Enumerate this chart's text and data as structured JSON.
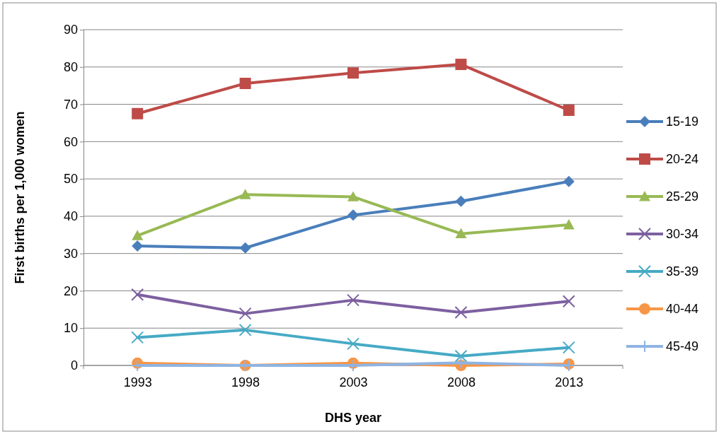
{
  "chart_data": {
    "type": "line",
    "xlabel": "DHS year",
    "ylabel": "First births per 1,000 women",
    "categories": [
      "1993",
      "1998",
      "2003",
      "2008",
      "2013"
    ],
    "ylim": [
      0,
      90
    ],
    "yticks": [
      0,
      10,
      20,
      30,
      40,
      50,
      60,
      70,
      80,
      90
    ],
    "grid": "y",
    "legend": "right",
    "line_style": "solid",
    "series": [
      {
        "name": "15-19",
        "color": "#4a7ebb",
        "marker": "diamond",
        "values": [
          32.0,
          31.5,
          40.3,
          44.0,
          49.3
        ]
      },
      {
        "name": "20-24",
        "color": "#be4b48",
        "marker": "square",
        "values": [
          67.5,
          75.6,
          78.4,
          80.7,
          68.4
        ]
      },
      {
        "name": "25-29",
        "color": "#98b954",
        "marker": "triangle",
        "values": [
          34.8,
          45.8,
          45.2,
          35.3,
          37.7
        ]
      },
      {
        "name": "30-34",
        "color": "#7d60a0",
        "marker": "cross",
        "values": [
          19.0,
          13.9,
          17.5,
          14.2,
          17.2
        ]
      },
      {
        "name": "35-39",
        "color": "#46aac5",
        "marker": "cross",
        "values": [
          7.5,
          9.5,
          5.8,
          2.5,
          4.8
        ]
      },
      {
        "name": "40-44",
        "color": "#f79646",
        "marker": "circle",
        "values": [
          0.6,
          0,
          0.6,
          0,
          0.4
        ]
      },
      {
        "name": "45-49",
        "color": "#8eb4e3",
        "marker": "plus",
        "values": [
          0,
          0,
          0,
          0.7,
          0
        ]
      }
    ]
  }
}
